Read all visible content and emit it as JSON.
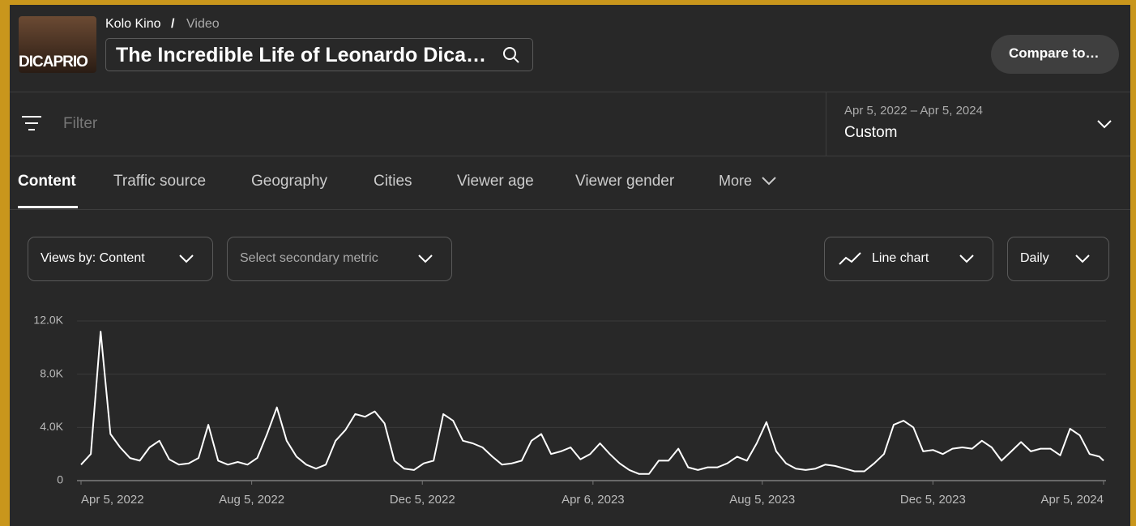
{
  "header": {
    "thumbnail_text": "DICAPRIO",
    "channel": "Kolo Kino",
    "separator": "/",
    "section": "Video",
    "title": "The Incredible Life of Leonardo Dica…",
    "compare_button": "Compare to…"
  },
  "filter": {
    "placeholder": "Filter",
    "date_range": "Apr 5, 2022 – Apr 5, 2024",
    "period": "Custom"
  },
  "tabs": [
    "Content",
    "Traffic source",
    "Geography",
    "Cities",
    "Viewer age",
    "Viewer gender",
    "More"
  ],
  "controls": {
    "metric": "Views by: Content",
    "secondary_metric": "Select secondary metric",
    "chart_type": "Line chart",
    "granularity": "Daily"
  },
  "chart_data": {
    "type": "line",
    "color": "#ffffff",
    "grid": true,
    "x": [
      "2022-04-05",
      "2022-04-12",
      "2022-04-19",
      "2022-04-26",
      "2022-05-03",
      "2022-05-10",
      "2022-05-17",
      "2022-05-24",
      "2022-05-31",
      "2022-06-07",
      "2022-06-14",
      "2022-06-21",
      "2022-06-28",
      "2022-07-05",
      "2022-07-12",
      "2022-07-19",
      "2022-07-26",
      "2022-08-02",
      "2022-08-09",
      "2022-08-16",
      "2022-08-23",
      "2022-08-30",
      "2022-09-06",
      "2022-09-13",
      "2022-09-20",
      "2022-09-27",
      "2022-10-04",
      "2022-10-11",
      "2022-10-18",
      "2022-10-25",
      "2022-11-01",
      "2022-11-08",
      "2022-11-15",
      "2022-11-22",
      "2022-11-29",
      "2022-12-06",
      "2022-12-13",
      "2022-12-20",
      "2022-12-27",
      "2023-01-03",
      "2023-01-10",
      "2023-01-17",
      "2023-01-24",
      "2023-01-31",
      "2023-02-07",
      "2023-02-14",
      "2023-02-21",
      "2023-02-28",
      "2023-03-07",
      "2023-03-14",
      "2023-03-21",
      "2023-03-28",
      "2023-04-04",
      "2023-04-11",
      "2023-04-18",
      "2023-04-25",
      "2023-05-02",
      "2023-05-09",
      "2023-05-16",
      "2023-05-23",
      "2023-05-30",
      "2023-06-06",
      "2023-06-13",
      "2023-06-20",
      "2023-06-27",
      "2023-07-04",
      "2023-07-11",
      "2023-07-18",
      "2023-07-25",
      "2023-08-01",
      "2023-08-08",
      "2023-08-15",
      "2023-08-22",
      "2023-08-29",
      "2023-09-05",
      "2023-09-12",
      "2023-09-19",
      "2023-09-26",
      "2023-10-03",
      "2023-10-10",
      "2023-10-17",
      "2023-10-24",
      "2023-10-31",
      "2023-11-07",
      "2023-11-14",
      "2023-11-21",
      "2023-11-28",
      "2023-12-05",
      "2023-12-12",
      "2023-12-19",
      "2023-12-26",
      "2024-01-02",
      "2024-01-09",
      "2024-01-16",
      "2024-01-23",
      "2024-01-30",
      "2024-02-06",
      "2024-02-13",
      "2024-02-20",
      "2024-02-27",
      "2024-03-05",
      "2024-03-12",
      "2024-03-19",
      "2024-03-26",
      "2024-04-02",
      "2024-04-05"
    ],
    "values": [
      1200,
      2000,
      11200,
      3500,
      2500,
      1700,
      1500,
      2500,
      3000,
      1600,
      1200,
      1300,
      1700,
      4200,
      1500,
      1200,
      1400,
      1200,
      1700,
      3500,
      5500,
      3000,
      1800,
      1200,
      900,
      1200,
      3000,
      3800,
      5000,
      4800,
      5200,
      4300,
      1500,
      900,
      800,
      1300,
      1500,
      5000,
      4500,
      3000,
      2800,
      2500,
      1800,
      1200,
      1300,
      1500,
      3000,
      3500,
      2000,
      2200,
      2500,
      1600,
      2000,
      2800,
      2000,
      1300,
      800,
      500,
      500,
      1500,
      1500,
      2400,
      1000,
      800,
      1000,
      1000,
      1300,
      1800,
      1500,
      2800,
      4400,
      2200,
      1300,
      900,
      800,
      900,
      1200,
      1100,
      900,
      700,
      700,
      1300,
      2000,
      4200,
      4500,
      4000,
      2200,
      2300,
      2000,
      2400,
      2500,
      2400,
      3000,
      2500,
      1500,
      2200,
      2900,
      2200,
      2400,
      2400,
      1900,
      3900,
      3400,
      2000,
      1800,
      1500
    ],
    "xlim": [
      "2022-04-05",
      "2024-04-05"
    ],
    "xticks": [
      {
        "value": "2022-04-05",
        "label": "Apr 5, 2022"
      },
      {
        "value": "2022-08-05",
        "label": "Aug 5, 2022"
      },
      {
        "value": "2022-12-05",
        "label": "Dec 5, 2022"
      },
      {
        "value": "2023-04-06",
        "label": "Apr 6, 2023"
      },
      {
        "value": "2023-08-05",
        "label": "Aug 5, 2023"
      },
      {
        "value": "2023-12-05",
        "label": "Dec 5, 2023"
      },
      {
        "value": "2024-04-05",
        "label": "Apr 5, 2024"
      }
    ],
    "ylim": [
      0,
      12000
    ],
    "yticks": [
      0,
      {
        "value": 4000,
        "label": "4.0K"
      },
      {
        "value": 8000,
        "label": "8.0K"
      },
      {
        "value": 12000,
        "label": "12.0K"
      }
    ]
  }
}
